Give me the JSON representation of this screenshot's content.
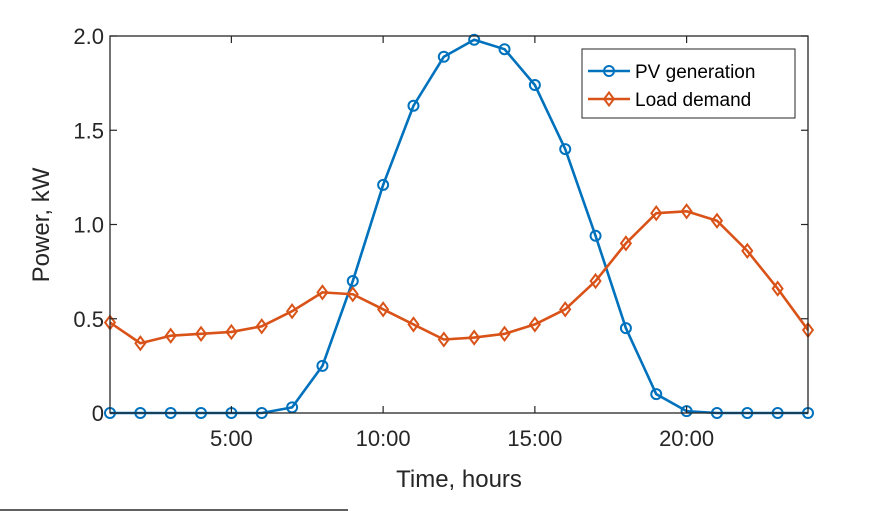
{
  "chart_data": {
    "type": "line",
    "title": "",
    "xlabel": "Time, hours",
    "ylabel": "Power, kW",
    "xlim": [
      1,
      24
    ],
    "ylim": [
      0,
      2.0
    ],
    "x_ticks": [
      5,
      10,
      15,
      20
    ],
    "x_tick_labels": [
      "5:00",
      "10:00",
      "15:00",
      "20:00"
    ],
    "y_ticks": [
      0,
      0.5,
      1.0,
      1.5,
      2.0
    ],
    "y_tick_labels": [
      "0",
      "0.5",
      "1.0",
      "1.5",
      "2.0"
    ],
    "grid": false,
    "legend_position": "top-right",
    "x": [
      1,
      2,
      3,
      4,
      5,
      6,
      7,
      8,
      9,
      10,
      11,
      12,
      13,
      14,
      15,
      16,
      17,
      18,
      19,
      20,
      21,
      22,
      23,
      24
    ],
    "series": [
      {
        "name": "PV generation",
        "color": "#0072BD",
        "marker": "circle",
        "values": [
          0,
          0,
          0,
          0,
          0,
          0,
          0.03,
          0.25,
          0.7,
          1.21,
          1.63,
          1.89,
          1.98,
          1.93,
          1.74,
          1.4,
          0.94,
          0.45,
          0.1,
          0.01,
          0,
          0,
          0,
          0
        ]
      },
      {
        "name": "Load demand",
        "color": "#D95319",
        "marker": "diamond",
        "values": [
          0.48,
          0.37,
          0.41,
          0.42,
          0.43,
          0.46,
          0.54,
          0.64,
          0.63,
          0.55,
          0.47,
          0.39,
          0.4,
          0.42,
          0.47,
          0.55,
          0.7,
          0.9,
          1.06,
          1.07,
          1.02,
          0.86,
          0.66,
          0.44
        ]
      }
    ]
  }
}
